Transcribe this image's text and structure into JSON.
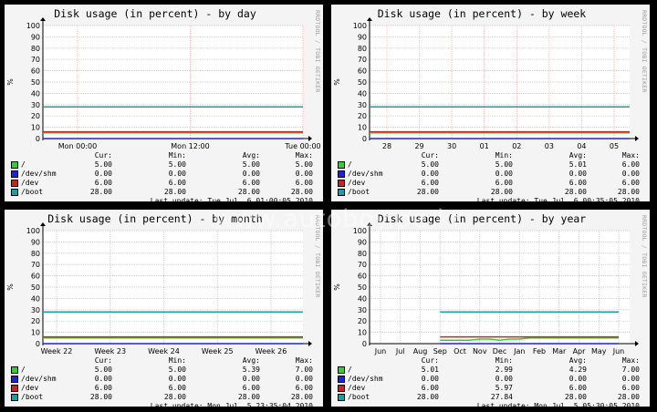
{
  "watermark": "www.autoboy.pe.kr",
  "series_meta": [
    {
      "name": "/",
      "color": "#2fd02f"
    },
    {
      "name": "/dev/shm",
      "color": "#2020e0"
    },
    {
      "name": "/dev",
      "color": "#cc2222"
    },
    {
      "name": "/boot",
      "color": "#18a0a8"
    }
  ],
  "legend_headers": {
    "cur": "Cur:",
    "min": "Min:",
    "avg": "Avg:",
    "max": "Max:"
  },
  "chart_data": [
    {
      "type": "line",
      "title": "Disk usage (in percent) - by day",
      "credit": "RRDTOOL / TOBI OETIKER",
      "ylabel": "%",
      "ylim": [
        0,
        100
      ],
      "y_ticks": [
        "0",
        "10",
        "20",
        "30",
        "40",
        "50",
        "60",
        "70",
        "80",
        "90",
        "100"
      ],
      "x_ticks": [
        "Mon 00:00",
        "Mon 12:00",
        "Tue 00:00"
      ],
      "grid": true,
      "series": [
        {
          "name": "/",
          "values": [
            5,
            5
          ],
          "cur": "5.00",
          "min": "5.00",
          "avg": "5.00",
          "max": "5.00"
        },
        {
          "name": "/dev/shm",
          "values": [
            0,
            0
          ],
          "cur": "0.00",
          "min": "0.00",
          "avg": "0.00",
          "max": "0.00"
        },
        {
          "name": "/dev",
          "values": [
            6,
            6
          ],
          "cur": "6.00",
          "min": "6.00",
          "avg": "6.00",
          "max": "6.00"
        },
        {
          "name": "/boot",
          "values": [
            28,
            28
          ],
          "cur": "28.00",
          "min": "28.00",
          "avg": "28.00",
          "max": "28.00"
        }
      ],
      "last_update": "Last update: Tue Jul  6 01:00:05 2010"
    },
    {
      "type": "line",
      "title": "Disk usage (in percent) - by week",
      "credit": "RRDTOOL / TOBI OETIKER",
      "ylabel": "%",
      "ylim": [
        0,
        100
      ],
      "y_ticks": [
        "0",
        "10",
        "20",
        "30",
        "40",
        "50",
        "60",
        "70",
        "80",
        "90",
        "100"
      ],
      "x_ticks": [
        "28",
        "29",
        "30",
        "01",
        "02",
        "03",
        "04",
        "05"
      ],
      "grid": true,
      "series": [
        {
          "name": "/",
          "values": [
            5,
            5
          ],
          "cur": "5.00",
          "min": "5.00",
          "avg": "5.01",
          "max": "6.00"
        },
        {
          "name": "/dev/shm",
          "values": [
            0,
            0
          ],
          "cur": "0.00",
          "min": "0.00",
          "avg": "0.00",
          "max": "0.00"
        },
        {
          "name": "/dev",
          "values": [
            6,
            6
          ],
          "cur": "6.00",
          "min": "6.00",
          "avg": "6.00",
          "max": "6.00"
        },
        {
          "name": "/boot",
          "values": [
            28,
            28
          ],
          "cur": "28.00",
          "min": "28.00",
          "avg": "28.00",
          "max": "28.00"
        }
      ],
      "last_update": "Last update: Tue Jul  6 00:35:05 2010"
    },
    {
      "type": "line",
      "title": "Disk usage (in percent) - by month",
      "credit": "RRDTOOL / TOBI OETIKER",
      "ylabel": "%",
      "ylim": [
        0,
        100
      ],
      "y_ticks": [
        "0",
        "10",
        "20",
        "30",
        "40",
        "50",
        "60",
        "70",
        "80",
        "90",
        "100"
      ],
      "x_ticks": [
        "Week 22",
        "Week 23",
        "Week 24",
        "Week 25",
        "Week 26"
      ],
      "grid": true,
      "series": [
        {
          "name": "/",
          "values": [
            5,
            5
          ],
          "cur": "5.00",
          "min": "5.00",
          "avg": "5.39",
          "max": "7.00"
        },
        {
          "name": "/dev/shm",
          "values": [
            0,
            0
          ],
          "cur": "0.00",
          "min": "0.00",
          "avg": "0.00",
          "max": "0.00"
        },
        {
          "name": "/dev",
          "values": [
            6,
            6
          ],
          "cur": "6.00",
          "min": "6.00",
          "avg": "6.00",
          "max": "6.00"
        },
        {
          "name": "/boot",
          "values": [
            28,
            28
          ],
          "cur": "28.00",
          "min": "28.00",
          "avg": "28.00",
          "max": "28.00"
        }
      ],
      "last_update": "Last update: Mon Jul  5 23:35:04 2010"
    },
    {
      "type": "line",
      "title": "Disk usage (in percent) - by year",
      "credit": "RRDTOOL / TOBI OETIKER",
      "ylabel": "%",
      "ylim": [
        0,
        100
      ],
      "y_ticks": [
        "0",
        "10",
        "20",
        "30",
        "40",
        "50",
        "60",
        "70",
        "80",
        "90",
        "100"
      ],
      "x_ticks": [
        "Jun",
        "Jul",
        "Aug",
        "Sep",
        "Oct",
        "Nov",
        "Dec",
        "Jan",
        "Feb",
        "Mar",
        "Apr",
        "May",
        "Jun"
      ],
      "grid": true,
      "series": [
        {
          "name": "/",
          "x": [
            3.0,
            4.0,
            4.5,
            5.0,
            5.5,
            6.0,
            6.5,
            7.0,
            7.5,
            8.0,
            8.5,
            9.0,
            10.0,
            11.0,
            12.0
          ],
          "values": [
            3,
            3,
            3,
            4,
            4,
            3,
            4,
            4,
            5,
            5,
            5,
            5,
            5,
            5,
            5
          ],
          "cur": "5.01",
          "min": "2.99",
          "avg": "4.29",
          "max": "7.00"
        },
        {
          "name": "/dev/shm",
          "x": [
            3.0,
            12.0
          ],
          "values": [
            0,
            0
          ],
          "cur": "0.00",
          "min": "0.00",
          "avg": "0.00",
          "max": "0.00"
        },
        {
          "name": "/dev",
          "x": [
            3.0,
            12.0
          ],
          "values": [
            6,
            6
          ],
          "cur": "6.00",
          "min": "5.97",
          "avg": "6.00",
          "max": "6.00"
        },
        {
          "name": "/boot",
          "x": [
            3.0,
            12.0
          ],
          "values": [
            28,
            28
          ],
          "cur": "28.00",
          "min": "27.84",
          "avg": "28.00",
          "max": "28.00"
        }
      ],
      "last_update": "Last update: Mon Jul  5 05:30:05 2010"
    }
  ]
}
